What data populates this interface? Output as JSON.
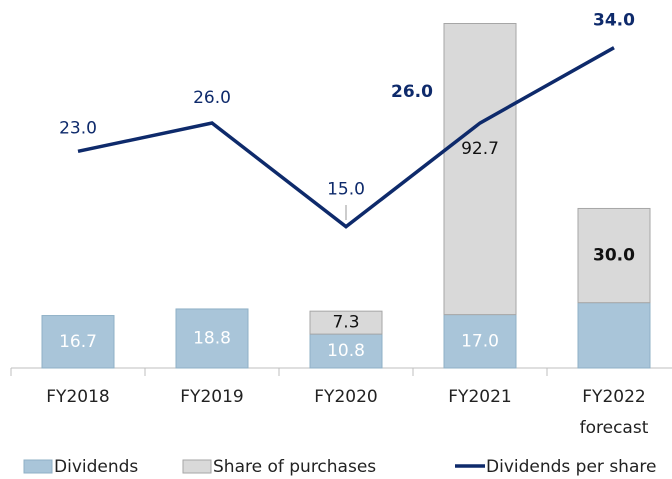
{
  "chart_data": {
    "type": "bar",
    "categories": [
      "FY2018",
      "FY2019",
      "FY2020",
      "FY2021",
      "FY2022\nforecast"
    ],
    "series": [
      {
        "name": "Dividends",
        "type": "bar",
        "color": "#a9c5d9",
        "values": [
          16.7,
          18.8,
          10.8,
          17.0,
          20.8
        ],
        "value_labels": [
          "16.7",
          "18.8",
          "10.8",
          "17.0",
          null
        ],
        "bold": [
          false,
          false,
          false,
          false,
          false
        ]
      },
      {
        "name": "Share of purchases",
        "type": "bar",
        "color": "#d9d9d9",
        "values": [
          null,
          null,
          7.3,
          92.7,
          30.0
        ],
        "value_labels": [
          null,
          null,
          "7.3",
          "92.7",
          "30.0"
        ],
        "bold": [
          false,
          false,
          false,
          false,
          true
        ]
      },
      {
        "name": "Dividends per share",
        "type": "line",
        "axis": "y2",
        "color": "#0e2a6b",
        "values": [
          23.0,
          26.0,
          15.0,
          26.0,
          34.0
        ],
        "value_labels": [
          "23.0",
          "26.0",
          "15.0",
          "26.0",
          "34.0"
        ],
        "bold": [
          false,
          false,
          false,
          true,
          true
        ]
      }
    ],
    "ylim": [
      0,
      114
    ],
    "y2lim": [
      0,
      38
    ],
    "stacked": true,
    "legend": "bottom"
  }
}
